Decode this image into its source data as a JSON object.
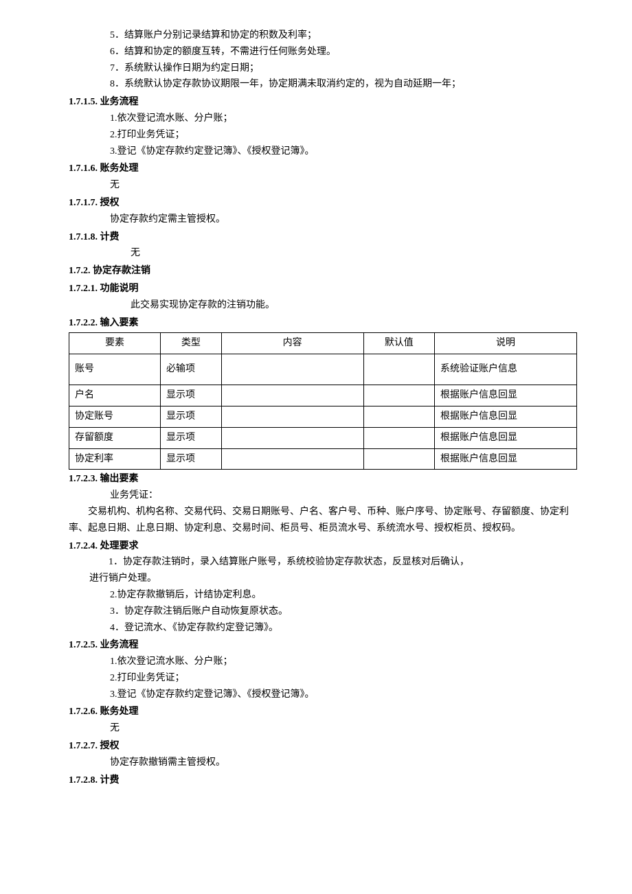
{
  "lines": {
    "l5": "5．结算账户分别记录结算和协定的积数及利率；",
    "l6": "6．结算和协定的额度互转，不需进行任何账务处理。",
    "l7": "7．系统默认操作日期为约定日期；",
    "l8": "8．系统默认协定存款协议期限一年，协定期满未取消约定的，视为自动延期一年；"
  },
  "s1715": {
    "h": "1.7.1.5.  业务流程",
    "i1": "1.依次登记流水账、分户账；",
    "i2": "2.打印业务凭证；",
    "i3": "3.登记《协定存款约定登记簿》、《授权登记簿》。"
  },
  "s1716": {
    "h": "1.7.1.6.  账务处理",
    "body": "无"
  },
  "s1717": {
    "h": "1.7.1.7.  授权",
    "body": "协定存款约定需主管授权。"
  },
  "s1718": {
    "h": "1.7.1.8.  计费",
    "body": "无"
  },
  "s172": {
    "h": "1.7.2.  协定存款注销"
  },
  "s1721": {
    "h": "1.7.2.1.  功能说明",
    "body": "此交易实现协定存款的注销功能。"
  },
  "s1722": {
    "h": "1.7.2.2.  输入要素"
  },
  "table": {
    "headers": [
      "要素",
      "类型",
      "内容",
      "默认值",
      "说明"
    ],
    "rows": [
      [
        "账号",
        "必输项",
        "",
        "",
        "系统验证账户信息"
      ],
      [
        "户名",
        "显示项",
        "",
        "",
        "根据账户信息回显"
      ],
      [
        "协定账号",
        "显示项",
        "",
        "",
        "根据账户信息回显"
      ],
      [
        "存留额度",
        "显示项",
        "",
        "",
        "根据账户信息回显"
      ],
      [
        "协定利率",
        "显示项",
        "",
        "",
        "根据账户信息回显"
      ]
    ]
  },
  "s1723": {
    "h": "1.7.2.3.  输出要素",
    "p1": "业务凭证：",
    "p2": "交易机构、机构名称、交易代码、交易日期账号、户名、客户号、币种、账户序号、协定账号、存留额度、协定利率、起息日期、止息日期、协定利息、交易时间、柜员号、柜员流水号、系统流水号、授权柜员、授权码。"
  },
  "s1724": {
    "h": "1.7.2.4.  处理要求",
    "i1a": "1．协定存款注销时，录入结算账户账号，系统校验协定存款状态，反显核对后确认，",
    "i1b": "进行销户处理。",
    "i2": "2.协定存款撤销后，计结协定利息。",
    "i3": "3．协定存款注销后账户自动恢复原状态。",
    "i4": "4．登记流水、《协定存款约定登记簿》。"
  },
  "s1725": {
    "h": "1.7.2.5.  业务流程",
    "i1": "1.依次登记流水账、分户账；",
    "i2": "2.打印业务凭证；",
    "i3": "3.登记《协定存款约定登记簿》、《授权登记簿》。"
  },
  "s1726": {
    "h": "1.7.2.6.  账务处理",
    "body": "无"
  },
  "s1727": {
    "h": "1.7.2.7.  授权",
    "body": "协定存款撤销需主管授权。"
  },
  "s1728": {
    "h": "1.7.2.8.  计费"
  }
}
